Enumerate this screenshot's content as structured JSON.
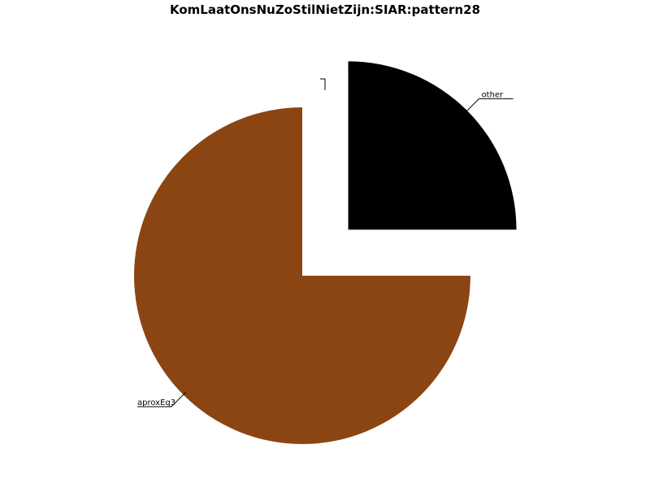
{
  "chart_data": {
    "type": "pie",
    "title": "KomLaatOnsNuZoStilNietZijn:SIAR:pattern28",
    "slices": [
      {
        "label": "other",
        "value": 25,
        "color": "#000000",
        "exploded": true
      },
      {
        "label": "aproxEq3",
        "value": 75,
        "color": "#8b4513",
        "exploded": false
      },
      {
        "label": "",
        "value": 0,
        "color": "#ffffff",
        "exploded": false
      },
      {
        "label": "",
        "value": 0,
        "color": "#ffffff",
        "exploded": false
      }
    ],
    "legend": "none"
  }
}
